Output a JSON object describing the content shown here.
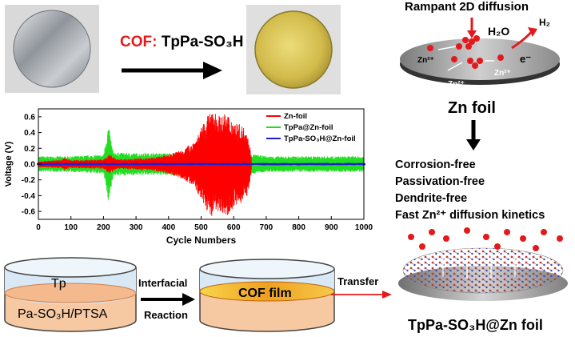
{
  "top": {
    "cof_label_prefix": "COF:",
    "cof_label_name": "TpPa-SO₃H",
    "colors": {
      "red": "#e31a1c",
      "gold": "#d7c255",
      "silver": "#9aa0a6"
    }
  },
  "zn_foil_top": {
    "title": "Rampant 2D diffusion",
    "h2o": "H₂O",
    "h2": "H₂",
    "electron": "e⁻",
    "ion_labels": [
      "Zn²⁺",
      "Zn²⁺",
      "Zn²⁺"
    ],
    "caption": "Zn foil"
  },
  "benefits": [
    "Corrosion-free",
    "Passivation-free",
    "Dendrite-free",
    "Fast Zn²⁺ diffusion kinetics"
  ],
  "bottom_caption": "TpPa-SO₃H@Zn foil",
  "beakers": {
    "left_top": "Tp",
    "left_bottom": "Pa-SO₃H/PTSA",
    "arrow_label_1": "Interfacial",
    "arrow_label_2": "Reaction",
    "right_film": "COF film",
    "transfer": "Transfer"
  },
  "chart_data": {
    "type": "line",
    "xlabel": "Cycle Numbers",
    "ylabel": "Voltage (V)",
    "xlim": [
      0,
      1000
    ],
    "ylim": [
      -0.7,
      0.7
    ],
    "xticks": [
      0,
      100,
      200,
      300,
      400,
      500,
      600,
      700,
      800,
      900,
      1000
    ],
    "yticks": [
      -0.6,
      -0.4,
      -0.2,
      0.0,
      0.2,
      0.4,
      0.6
    ],
    "legend_position": "top-right",
    "series": [
      {
        "name": "Zn-foil",
        "color": "#ff0000",
        "x_end": 655,
        "envelope": [
          [
            0,
            0.04
          ],
          [
            70,
            0.05
          ],
          [
            80,
            0.08
          ],
          [
            100,
            0.05
          ],
          [
            200,
            0.06
          ],
          [
            220,
            0.13
          ],
          [
            240,
            0.06
          ],
          [
            300,
            0.07
          ],
          [
            350,
            0.08
          ],
          [
            400,
            0.12
          ],
          [
            450,
            0.2
          ],
          [
            480,
            0.3
          ],
          [
            500,
            0.45
          ],
          [
            520,
            0.62
          ],
          [
            540,
            0.68
          ],
          [
            560,
            0.6
          ],
          [
            580,
            0.65
          ],
          [
            600,
            0.55
          ],
          [
            620,
            0.5
          ],
          [
            640,
            0.45
          ],
          [
            655,
            0.1
          ]
        ]
      },
      {
        "name": "TpPa@Zn-foil",
        "color": "#22dd22",
        "x_end": 1000,
        "envelope": [
          [
            0,
            0.1
          ],
          [
            100,
            0.1
          ],
          [
            200,
            0.12
          ],
          [
            215,
            0.5
          ],
          [
            230,
            0.15
          ],
          [
            300,
            0.14
          ],
          [
            400,
            0.14
          ],
          [
            500,
            0.16
          ],
          [
            600,
            0.16
          ],
          [
            700,
            0.1
          ],
          [
            800,
            0.1
          ],
          [
            900,
            0.1
          ],
          [
            1000,
            0.1
          ]
        ]
      },
      {
        "name": "TpPa-SO₃H@Zn-foil",
        "color": "#1f1fd0",
        "x_end": 1000,
        "envelope": [
          [
            0,
            0.015
          ],
          [
            1000,
            0.015
          ]
        ]
      }
    ]
  }
}
